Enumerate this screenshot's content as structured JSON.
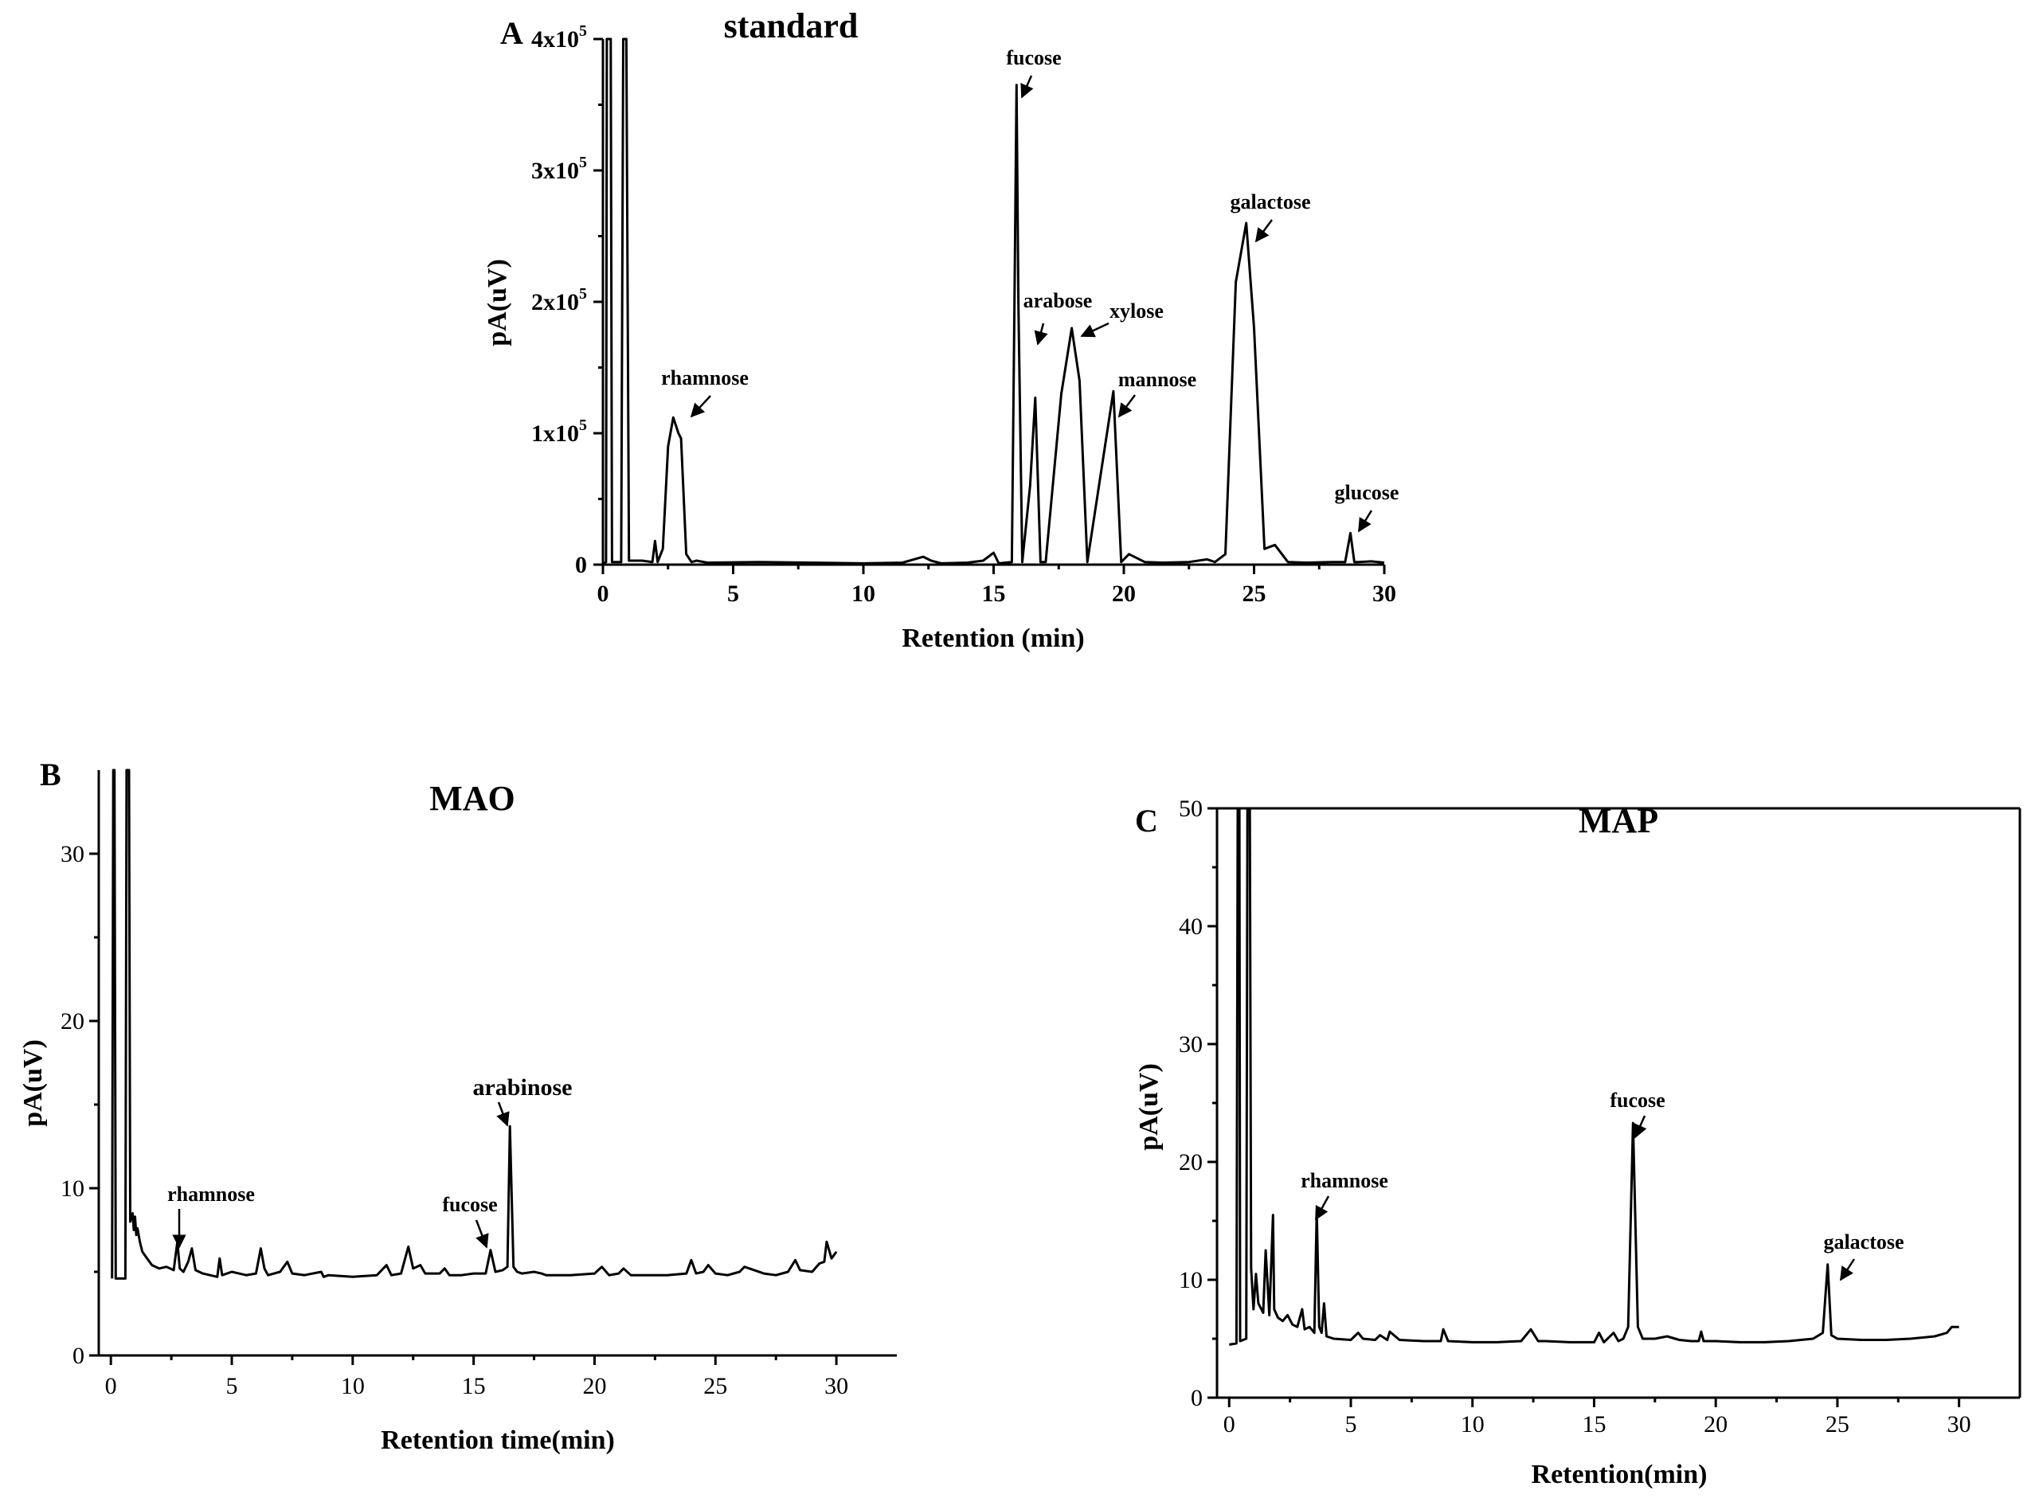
{
  "chart_data": [
    {
      "panel": "A",
      "type": "line",
      "title": "standard",
      "xlabel": "Retention (min)",
      "ylabel": "pA(uV)",
      "xlim": [
        0,
        30
      ],
      "ylim": [
        0,
        400000
      ],
      "x_ticks": [
        0,
        5,
        10,
        15,
        20,
        25,
        30
      ],
      "x_tick_labels": [
        "0",
        "5",
        "10",
        "15",
        "20",
        "25",
        "30"
      ],
      "y_ticks": [
        0,
        100000,
        200000,
        300000,
        400000
      ],
      "y_tick_labels": [
        {
          "base": "0",
          "exp": ""
        },
        {
          "base": "1x10",
          "exp": "5"
        },
        {
          "base": "2x10",
          "exp": "5"
        },
        {
          "base": "3x10",
          "exp": "5"
        },
        {
          "base": "4x10",
          "exp": "5"
        }
      ],
      "peaks": [
        {
          "name": "rhamnose",
          "x": 2.7,
          "y": 112000
        },
        {
          "name": "fucose",
          "x": 15.9,
          "y": 365000
        },
        {
          "name": "arabose",
          "x": 16.6,
          "y": 127000
        },
        {
          "name": "xylose",
          "x": 18.0,
          "y": 180000
        },
        {
          "name": "mannose",
          "x": 19.6,
          "y": 132000
        },
        {
          "name": "galactose",
          "x": 24.7,
          "y": 260000
        },
        {
          "name": "glucose",
          "x": 28.7,
          "y": 24000
        }
      ],
      "series": [
        {
          "name": "standard",
          "x": [
            0,
            0.12,
            0.15,
            0.2,
            0.25,
            0.3,
            0.35,
            0.45,
            0.7,
            0.78,
            0.85,
            0.9,
            1.0,
            1.5,
            1.9,
            2.0,
            2.1,
            2.3,
            2.5,
            2.7,
            2.9,
            3.0,
            3.2,
            3.4,
            3.6,
            4,
            6,
            8,
            10,
            11.5,
            12.3,
            12.6,
            13,
            14,
            14.6,
            15,
            15.2,
            15.7,
            15.8,
            15.88,
            15.95,
            16.1,
            16.4,
            16.6,
            16.8,
            17.0,
            17.6,
            18.0,
            18.3,
            18.6,
            19.2,
            19.6,
            19.9,
            20.2,
            20.8,
            21.5,
            22.5,
            23.2,
            23.5,
            23.9,
            24.3,
            24.7,
            25.0,
            25.4,
            25.8,
            26.3,
            27,
            28,
            28.5,
            28.7,
            28.85,
            29,
            29.5,
            30
          ],
          "y": [
            1000,
            2000,
            400000,
            400000,
            400000,
            400000,
            2000,
            2000,
            2000,
            400000,
            400000,
            400000,
            3000,
            3000,
            2000,
            18000,
            2000,
            12000,
            90000,
            112000,
            100000,
            96000,
            8000,
            2000,
            3000,
            1500,
            2000,
            1500,
            1000,
            1500,
            6000,
            3000,
            1000,
            1500,
            3000,
            9000,
            1000,
            2000,
            200000,
            365000,
            200000,
            2000,
            60000,
            127000,
            2000,
            2000,
            130000,
            180000,
            140000,
            2000,
            80000,
            132000,
            2000,
            8000,
            2000,
            1500,
            2000,
            4000,
            2000,
            8000,
            215000,
            260000,
            180000,
            12000,
            15000,
            2000,
            1500,
            2000,
            2000,
            24000,
            2000,
            2000,
            2500,
            1500
          ]
        }
      ]
    },
    {
      "panel": "B",
      "type": "line",
      "title": "MAO",
      "xlabel": "Retention time(min)",
      "ylabel": "pA(uV)",
      "xlim": [
        -0.5,
        32.5
      ],
      "ylim": [
        0,
        35
      ],
      "x_ticks": [
        0,
        5,
        10,
        15,
        20,
        25,
        30
      ],
      "x_tick_labels": [
        "0",
        "5",
        "10",
        "15",
        "20",
        "25",
        "30"
      ],
      "y_ticks": [
        0,
        10,
        20,
        30
      ],
      "y_tick_labels": [
        "0",
        "10",
        "20",
        "30"
      ],
      "peaks": [
        {
          "name": "rhamnose",
          "x": 2.8,
          "y": 6.8
        },
        {
          "name": "fucose",
          "x": 15.7,
          "y": 6.3
        },
        {
          "name": "arabinose",
          "x": 16.5,
          "y": 13.7
        }
      ],
      "series": [
        {
          "name": "MAO",
          "x": [
            0.05,
            0.1,
            0.15,
            0.2,
            0.6,
            0.65,
            0.7,
            0.75,
            0.8,
            0.9,
            0.95,
            1.0,
            1.05,
            1.1,
            1.2,
            1.3,
            1.5,
            1.7,
            2.0,
            2.3,
            2.6,
            2.75,
            2.85,
            3.0,
            3.2,
            3.35,
            3.5,
            3.8,
            4.1,
            4.4,
            4.5,
            4.6,
            5.0,
            5.3,
            5.6,
            6.0,
            6.2,
            6.35,
            6.5,
            7.0,
            7.3,
            7.5,
            8.0,
            8.7,
            8.8,
            9.0,
            10.0,
            11.0,
            11.4,
            11.6,
            12.0,
            12.3,
            12.5,
            12.8,
            13.0,
            13.6,
            13.8,
            14.0,
            14.5,
            15.0,
            15.5,
            15.7,
            15.9,
            16.2,
            16.4,
            16.5,
            16.65,
            16.8,
            17.0,
            17.5,
            17.8,
            18.0,
            19.0,
            20.0,
            20.3,
            20.6,
            21.0,
            21.2,
            21.5,
            22.0,
            23.0,
            23.8,
            24.0,
            24.2,
            24.5,
            24.7,
            25.0,
            25.5,
            26.0,
            26.2,
            27.0,
            27.5,
            28.0,
            28.3,
            28.5,
            29.0,
            29.3,
            29.5,
            29.6,
            29.8,
            30.0
          ],
          "y": [
            4.6,
            36,
            36,
            4.6,
            4.6,
            36,
            36,
            36,
            8.0,
            8.5,
            7.5,
            8.3,
            7.2,
            7.6,
            6.8,
            6.2,
            5.8,
            5.4,
            5.2,
            5.3,
            5.1,
            6.8,
            5.2,
            5.0,
            5.6,
            6.4,
            5.1,
            4.9,
            4.8,
            4.7,
            5.8,
            4.8,
            5.0,
            4.9,
            4.8,
            4.9,
            6.4,
            5.2,
            4.8,
            5.0,
            5.6,
            4.9,
            4.8,
            5.0,
            4.7,
            4.8,
            4.7,
            4.8,
            5.4,
            4.8,
            4.9,
            6.5,
            5.2,
            5.4,
            4.9,
            4.9,
            5.2,
            4.8,
            4.8,
            4.9,
            4.9,
            6.3,
            5.0,
            5.1,
            5.3,
            13.7,
            5.3,
            5.0,
            4.9,
            5.0,
            4.9,
            4.8,
            4.8,
            4.9,
            5.3,
            4.8,
            4.9,
            5.2,
            4.8,
            4.8,
            4.8,
            4.9,
            5.7,
            4.9,
            5.0,
            5.4,
            4.9,
            4.8,
            5.0,
            5.3,
            4.9,
            4.8,
            5.0,
            5.7,
            5.1,
            5.0,
            5.5,
            5.6,
            6.8,
            5.8,
            6.2
          ]
        }
      ]
    },
    {
      "panel": "C",
      "type": "line",
      "title": "MAP",
      "xlabel": "Retention(min)",
      "ylabel": "pA(uV)",
      "xlim": [
        -0.5,
        32.5
      ],
      "ylim": [
        0,
        50
      ],
      "x_ticks": [
        0,
        5,
        10,
        15,
        20,
        25,
        30
      ],
      "x_tick_labels": [
        "0",
        "5",
        "10",
        "15",
        "20",
        "25",
        "30"
      ],
      "y_ticks": [
        0,
        10,
        20,
        30,
        40,
        50
      ],
      "y_tick_labels": [
        "0",
        "10",
        "20",
        "30",
        "40",
        "50"
      ],
      "peaks": [
        {
          "name": "rhamnose",
          "x": 3.6,
          "y": 15.8
        },
        {
          "name": "fucose",
          "x": 16.6,
          "y": 23.3
        },
        {
          "name": "galactose",
          "x": 24.6,
          "y": 11.3
        }
      ],
      "series": [
        {
          "name": "MAP",
          "x": [
            0,
            0.3,
            0.35,
            0.4,
            0.42,
            0.45,
            0.7,
            0.75,
            0.8,
            0.85,
            0.9,
            1.0,
            1.1,
            1.2,
            1.4,
            1.5,
            1.65,
            1.8,
            1.85,
            2.0,
            2.2,
            2.4,
            2.6,
            2.8,
            3.0,
            3.1,
            3.3,
            3.5,
            3.6,
            3.7,
            3.8,
            3.9,
            4.0,
            4.3,
            5.0,
            5.3,
            5.5,
            6.0,
            6.2,
            6.5,
            6.6,
            7.0,
            8.0,
            8.7,
            8.8,
            9.0,
            10.0,
            11.0,
            12.0,
            12.4,
            12.7,
            13.0,
            14.0,
            15.0,
            15.2,
            15.4,
            15.8,
            16.0,
            16.2,
            16.4,
            16.6,
            16.8,
            17.0,
            17.5,
            18.0,
            18.5,
            19.0,
            19.3,
            19.4,
            19.5,
            20.0,
            21.0,
            22.0,
            23.0,
            24.0,
            24.4,
            24.6,
            24.75,
            25.0,
            26.0,
            27.0,
            28.0,
            29.0,
            29.5,
            29.7,
            30.0
          ],
          "y": [
            4.5,
            4.6,
            50,
            50,
            50,
            4.8,
            5.0,
            50,
            50,
            50,
            11,
            7.5,
            10.5,
            8.0,
            7.2,
            12.5,
            7.0,
            15.5,
            7.5,
            6.8,
            6.5,
            7.0,
            6.2,
            6.0,
            7.5,
            5.8,
            6.0,
            5.5,
            15.8,
            6.0,
            5.5,
            8.0,
            5.2,
            5.0,
            4.9,
            5.5,
            5.0,
            4.9,
            5.3,
            4.9,
            5.6,
            4.9,
            4.8,
            4.8,
            5.8,
            4.8,
            4.7,
            4.7,
            4.8,
            5.8,
            4.8,
            4.8,
            4.7,
            4.7,
            5.5,
            4.7,
            5.5,
            4.8,
            5.0,
            6.0,
            23.3,
            6.0,
            5.0,
            5.0,
            5.2,
            4.9,
            4.8,
            4.8,
            5.6,
            4.8,
            4.8,
            4.7,
            4.7,
            4.8,
            5.0,
            5.5,
            11.3,
            5.3,
            5.0,
            4.9,
            4.9,
            5.0,
            5.2,
            5.5,
            6.0,
            6.0
          ]
        }
      ]
    }
  ]
}
